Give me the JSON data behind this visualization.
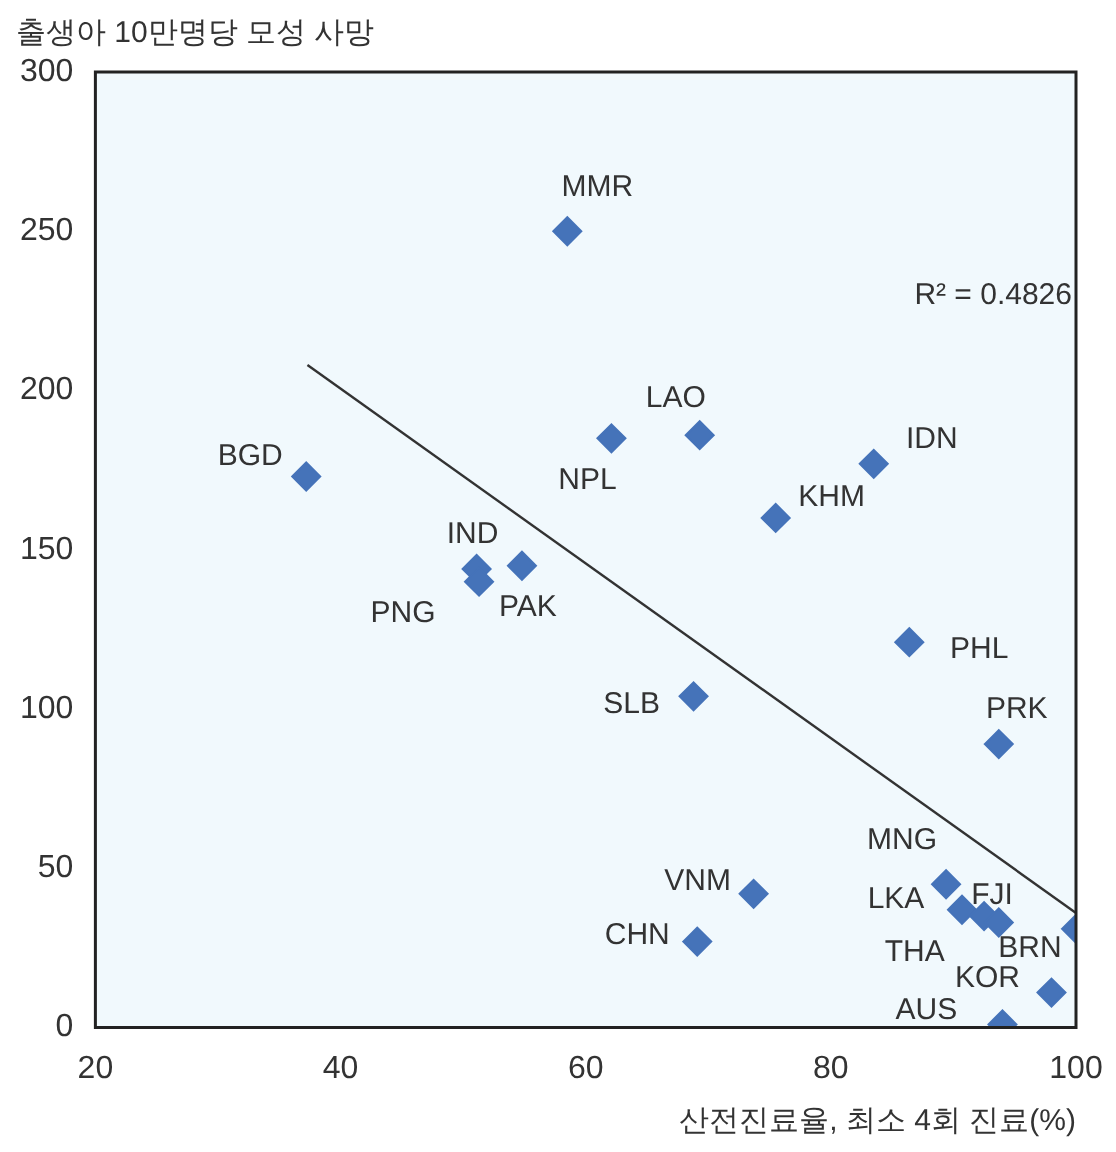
{
  "chart_data": {
    "type": "scatter",
    "ylabel": "출생아 10만명당 모성 사망",
    "xlabel": "산전진료율, 최소 4회 진료(%)",
    "xlim": [
      20,
      100
    ],
    "xticks": [
      20,
      40,
      60,
      80,
      100
    ],
    "ylim": [
      0,
      300
    ],
    "yticks": [
      0,
      50,
      100,
      150,
      200,
      250,
      300
    ],
    "grid": false,
    "legend": false,
    "marker": "diamond",
    "series": [
      {
        "color": "#4573b9",
        "x": [
          58.5,
          37.2,
          62.1,
          69.3,
          83.5,
          75.5,
          51.1,
          54.8,
          51.3,
          86.4,
          68.8,
          93.7,
          89.4,
          73.7,
          90.7,
          92.5,
          93.7,
          69.1,
          100,
          98,
          94
        ],
        "values": [
          250,
          173,
          185,
          186,
          177,
          160,
          144,
          145,
          140,
          121,
          104,
          89,
          45,
          42,
          37,
          35,
          33,
          27,
          31,
          11,
          1
        ]
      },
      {
        "type": "line",
        "color": "#333333",
        "marker": "none",
        "line_style": "solid",
        "x": [
          37.3,
          100
        ],
        "values": [
          208,
          36
        ]
      }
    ],
    "annotations": [
      {
        "text": "MMR",
        "x": 58.5,
        "y": 250
      },
      {
        "text": "BGD",
        "x": 37.2,
        "y": 173
      },
      {
        "text": "NPL",
        "x": 62.1,
        "y": 185
      },
      {
        "text": "LAO",
        "x": 69.3,
        "y": 186
      },
      {
        "text": "IDN",
        "x": 83.5,
        "y": 177
      },
      {
        "text": "KHM",
        "x": 75.5,
        "y": 160
      },
      {
        "text": "IND",
        "x": 51.1,
        "y": 144
      },
      {
        "text": "PAK",
        "x": 54.8,
        "y": 145
      },
      {
        "text": "PNG",
        "x": 51.3,
        "y": 140
      },
      {
        "text": "PHL",
        "x": 86.4,
        "y": 121
      },
      {
        "text": "SLB",
        "x": 68.8,
        "y": 104
      },
      {
        "text": "PRK",
        "x": 93.7,
        "y": 89
      },
      {
        "text": "MNG",
        "x": 89.4,
        "y": 45
      },
      {
        "text": "VNM",
        "x": 73.7,
        "y": 42
      },
      {
        "text": "LKA",
        "x": 90.7,
        "y": 37
      },
      {
        "text": "FJI",
        "x": 92.5,
        "y": 35
      },
      {
        "text": "THA",
        "x": 93.7,
        "y": 33
      },
      {
        "text": "CHN",
        "x": 69.1,
        "y": 27
      },
      {
        "text": "BRN",
        "x": 100,
        "y": 31
      },
      {
        "text": "KOR",
        "x": 98,
        "y": 11
      },
      {
        "text": "AUS",
        "x": 94,
        "y": 1
      },
      "R² = 0.4826"
    ]
  }
}
